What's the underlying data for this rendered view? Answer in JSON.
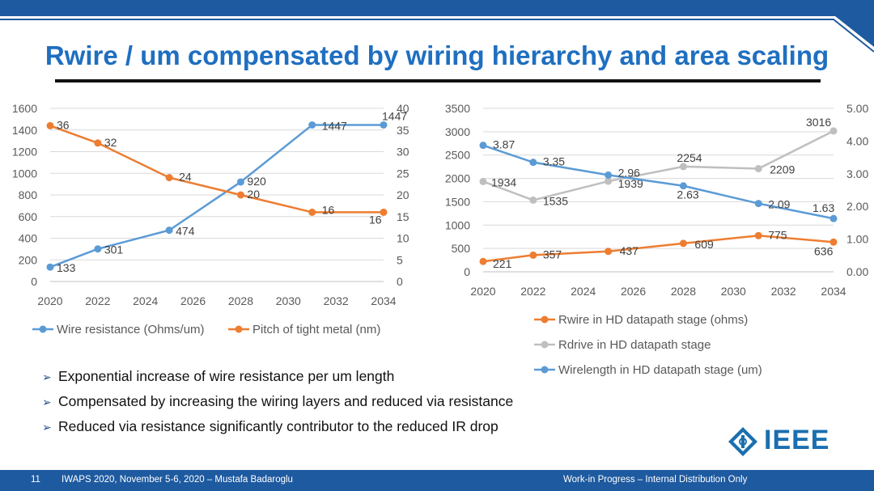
{
  "slide": {
    "title": "Rwire / um compensated by wiring hierarchy and area scaling",
    "bullets": [
      "Exponential increase of wire resistance per um length",
      "Compensated by increasing the wiring layers and reduced via resistance",
      "Reduced via resistance significantly contributor to the reduced IR drop"
    ],
    "slide_number": "11",
    "footer_left": "IWAPS 2020, November 5-6, 2020 – Mustafa Badaroglu",
    "footer_right": "Work-in Progress – Internal Distribution Only",
    "logo_text": "IEEE",
    "colors": {
      "title": "#1f6fc0",
      "footer": "#1e5aa0",
      "blue": "#5b9bd5",
      "orange": "#ed7d31",
      "gray": "#bfbfbf"
    }
  },
  "chart_data": [
    {
      "type": "line",
      "x_ticks": [
        2020,
        2022,
        2024,
        2026,
        2028,
        2030,
        2032,
        2034
      ],
      "xlim": [
        2020,
        2034
      ],
      "ylim": [
        0,
        1600
      ],
      "y_ticks": [
        0,
        200,
        400,
        600,
        800,
        1000,
        1200,
        1400,
        1600
      ],
      "y2lim": [
        0,
        40
      ],
      "y2_ticks": [
        0,
        5,
        10,
        15,
        20,
        25,
        30,
        35,
        40
      ],
      "grid": true,
      "legend_position": "bottom",
      "series": [
        {
          "name": "Wire resistance (Ohms/um)",
          "axis": "left",
          "color": "#5b9bd5",
          "x": [
            2020,
            2022,
            2025,
            2028,
            2031,
            2034
          ],
          "y": [
            133,
            301,
            474,
            920,
            1447,
            1447
          ],
          "labels": [
            "133",
            "301",
            "474",
            "920",
            "1447",
            "1447"
          ]
        },
        {
          "name": "Pitch of tight metal (nm)",
          "axis": "right",
          "color": "#ed7d31",
          "x": [
            2020,
            2022,
            2025,
            2028,
            2031,
            2034
          ],
          "y": [
            36,
            32,
            24,
            20,
            16,
            16
          ],
          "labels": [
            "36",
            "32",
            "24",
            "20",
            "16",
            "16"
          ]
        }
      ]
    },
    {
      "type": "line",
      "x_ticks": [
        2020,
        2022,
        2024,
        2026,
        2028,
        2030,
        2032,
        2034
      ],
      "xlim": [
        2020,
        2034
      ],
      "ylim": [
        0,
        3500
      ],
      "y_ticks": [
        0,
        500,
        1000,
        1500,
        2000,
        2500,
        3000,
        3500
      ],
      "y2lim": [
        0,
        5
      ],
      "y2_ticks": [
        "0.00",
        "1.00",
        "2.00",
        "3.00",
        "4.00",
        "5.00"
      ],
      "grid": true,
      "legend_position": "bottom",
      "series": [
        {
          "name": "Rwire in HD datapath stage (ohms)",
          "axis": "left",
          "color": "#ed7d31",
          "x": [
            2020,
            2022,
            2025,
            2028,
            2031,
            2034
          ],
          "y": [
            221,
            357,
            437,
            609,
            775,
            636
          ],
          "labels": [
            "221",
            "357",
            "437",
            "609",
            "775",
            "636"
          ]
        },
        {
          "name": "Rdrive in HD datapath stage",
          "axis": "left",
          "color": "#bfbfbf",
          "x": [
            2020,
            2022,
            2025,
            2028,
            2031,
            2034
          ],
          "y": [
            1934,
            1535,
            1939,
            2254,
            2209,
            3016
          ],
          "labels": [
            "1934",
            "1535",
            "1939",
            "2254",
            "2209",
            "3016"
          ]
        },
        {
          "name": "Wirelength in HD datapath stage (um)",
          "axis": "right",
          "color": "#5b9bd5",
          "x": [
            2020,
            2022,
            2025,
            2028,
            2031,
            2034
          ],
          "y": [
            3.87,
            3.35,
            2.96,
            2.63,
            2.09,
            1.63
          ],
          "labels": [
            "3.87",
            "3.35",
            "2.96",
            "2.63",
            "2.09",
            "1.63"
          ]
        }
      ]
    }
  ]
}
